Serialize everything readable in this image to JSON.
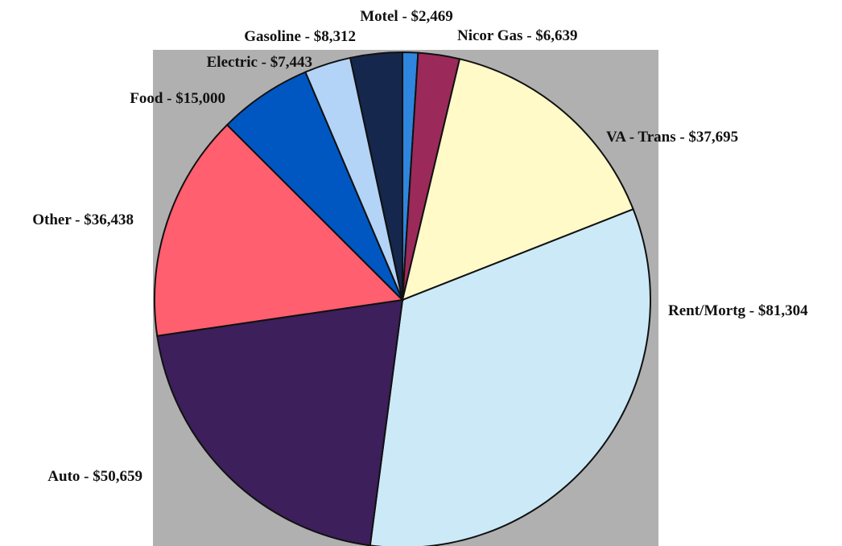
{
  "chart_data": {
    "type": "pie",
    "title": "",
    "slices": [
      {
        "label": "Motel - $2,469",
        "name": "Motel",
        "value": 2469,
        "color": "#2e86de"
      },
      {
        "label": "Nicor Gas - $6,639",
        "name": "Nicor Gas",
        "value": 6639,
        "color": "#9b2a5a"
      },
      {
        "label": "VA - Trans - $37,695",
        "name": "VA - Trans",
        "value": 37695,
        "color": "#fffac8"
      },
      {
        "label": "Rent/Mortg - $81,304",
        "name": "Rent/Mortg",
        "value": 81304,
        "color": "#cce9f7"
      },
      {
        "label": "Auto - $50,659",
        "name": "Auto",
        "value": 50659,
        "color": "#3d1f5c"
      },
      {
        "label": "Other - $36,438",
        "name": "Other",
        "value": 36438,
        "color": "#ff5f6f"
      },
      {
        "label": "Food - $15,000",
        "name": "Food",
        "value": 15000,
        "color": "#0057c2"
      },
      {
        "label": "Electric - $7,443",
        "name": "Electric",
        "value": 7443,
        "color": "#b3d4f7"
      },
      {
        "label": "Gasoline - $8,312",
        "name": "Gasoline",
        "value": 8312,
        "color": "#15274d"
      }
    ],
    "plot_background": "#b0b0b0",
    "legend": "none"
  }
}
